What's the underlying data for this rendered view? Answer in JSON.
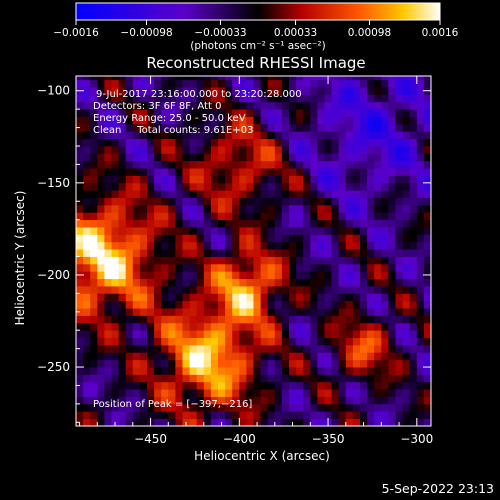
{
  "chart_data": {
    "type": "heatmap",
    "title": "Reconstructed RHESSI Image",
    "xlabel": "Heliocentric X (arcsec)",
    "ylabel": "Heliocentric Y (arcsec)",
    "xlim": [
      -492,
      -292
    ],
    "ylim": [
      -282,
      -92
    ],
    "x_ticks": [
      -450,
      -400,
      -350,
      -300
    ],
    "x_tick_labels": [
      "−450",
      "−400",
      "−350",
      "−300"
    ],
    "y_ticks": [
      -250,
      -200,
      -150,
      -100
    ],
    "y_tick_labels": [
      "−250",
      "−200",
      "−150",
      "−100"
    ],
    "colorbar": {
      "vmin": -0.0016,
      "vmax": 0.0016,
      "ticks": [
        -0.0016,
        -0.00098,
        -0.00033,
        0.00033,
        0.00098,
        0.0016
      ],
      "tick_labels": [
        "−0.0016",
        "−0.00098",
        "−0.00033",
        "0.00033",
        "0.00098",
        "0.0016"
      ],
      "unit_label": "(photons cm⁻² s⁻¹ asec⁻²)",
      "colors": [
        "#0000ff",
        "#5a00c8",
        "#000000",
        "#b40000",
        "#ff5a00",
        "#ffc800",
        "#ffffff"
      ]
    },
    "annotations": {
      "time_range": "9-Jul-2017 23:16:00.000 to 23:20:28.000",
      "detectors": "Detectors: 3F 6F 8F, Att 0",
      "energy_range": "Energy Range: 25.0 - 50.0 keV",
      "clean_counts": "Clean     Total counts: 9.61E+03",
      "peak": "Position of Peak = [−397,−216]"
    },
    "emission_regions": [
      {
        "name": "bright-source-west",
        "x": -478,
        "y": -190,
        "level": 0.0016
      },
      {
        "name": "bright-source-south",
        "x": -418,
        "y": -245,
        "level": 0.0015
      },
      {
        "name": "bright-source-center",
        "x": -395,
        "y": -205,
        "level": 0.0013
      },
      {
        "name": "upper-arc",
        "x": -400,
        "y": -140,
        "level": 0.0008
      },
      {
        "name": "southeast-blob",
        "x": -330,
        "y": -240,
        "level": 0.0009
      },
      {
        "name": "northeast-negative",
        "x": -325,
        "y": -120,
        "level": -0.0006
      }
    ]
  },
  "footer": {
    "timestamp": "5-Sep-2022 23:13"
  }
}
